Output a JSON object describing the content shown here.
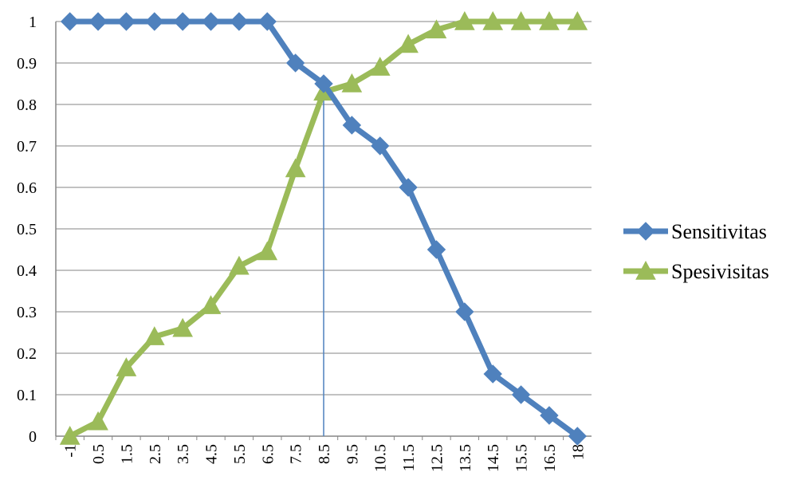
{
  "chart_data": {
    "type": "line",
    "title": "",
    "xlabel": "",
    "ylabel": "",
    "categories": [
      "-1",
      "0.5",
      "1.5",
      "2.5",
      "3.5",
      "4.5",
      "5.5",
      "6.5",
      "7.5",
      "8.5",
      "9.5",
      "10.5",
      "11.5",
      "12.5",
      "13.5",
      "14.5",
      "15.5",
      "16.5",
      "18"
    ],
    "ylim": [
      0,
      1
    ],
    "yticks": [
      "0",
      "0.1",
      "0.2",
      "0.3",
      "0.4",
      "0.5",
      "0.6",
      "0.7",
      "0.8",
      "0.9",
      "1"
    ],
    "grid": "horizontal",
    "legend_position": "right",
    "series": [
      {
        "name": "Sensitivitas",
        "color": "#4f81bd",
        "marker": "diamond",
        "values": [
          1,
          1,
          1,
          1,
          1,
          1,
          1,
          1,
          0.9,
          0.85,
          0.75,
          0.7,
          0.6,
          0.45,
          0.3,
          0.15,
          0.1,
          0.05,
          0
        ]
      },
      {
        "name": "Spesivisitas",
        "color": "#9bbb59",
        "marker": "triangle",
        "values": [
          0,
          0.035,
          0.165,
          0.24,
          0.26,
          0.315,
          0.41,
          0.445,
          0.645,
          0.83,
          0.85,
          0.89,
          0.945,
          0.98,
          1,
          1,
          1,
          1,
          1
        ]
      }
    ],
    "reference_line": {
      "category": "8.5",
      "color": "#4f81bd"
    }
  }
}
